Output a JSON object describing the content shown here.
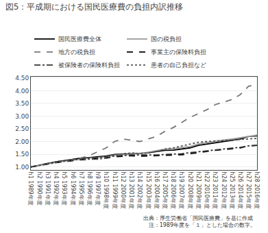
{
  "chart_data": {
    "type": "line",
    "title": "図5：平成期における国民医療費の負担内訳推移",
    "categories": [
      "h1 1989年度",
      "h2 1990年度",
      "h3 1991年度",
      "h4 1992年度",
      "h5 1993年度",
      "h6 1994年度",
      "h7 1995年度",
      "h8 1996年度",
      "h9 1997年度",
      "h10 1998年度",
      "h11 1999年度",
      "h12 2000年度",
      "h13 2001年度",
      "h14 2002年度",
      "h15 2003年度",
      "h16 2004年度",
      "h17 2005年度",
      "h18 2006年度",
      "h19 2007年度",
      "h20 2008年度",
      "h21 2009年度",
      "h22 2010年度",
      "h23 2011年度",
      "h24 2012年度",
      "h25 2013年度",
      "h26 2014年度",
      "h27 2015年度",
      "h28 2016年度"
    ],
    "ylim": [
      0.88,
      4.55
    ],
    "yticks": [
      {
        "value": 1.0,
        "label": "1.00"
      },
      {
        "value": 1.5,
        "label": "1.50"
      },
      {
        "value": 2.0,
        "label": "2.00"
      },
      {
        "value": 2.5,
        "label": "2.50"
      },
      {
        "value": 3.0,
        "label": "3.00"
      },
      {
        "value": 3.5,
        "label": "3.50"
      },
      {
        "value": 4.0,
        "label": "4.00"
      },
      {
        "value": 4.5,
        "label": "4.50"
      }
    ],
    "grid": true,
    "legend": "top",
    "annotations": [
      "出典：厚生労働省「国民医療費」を基に作成",
      "   注：1989年度を「１」とした場合の数字。"
    ],
    "series": [
      {
        "name": "国民医療費全体",
        "color": "#000000",
        "line_style": "solid",
        "values": [
          1.0,
          1.07,
          1.14,
          1.2,
          1.25,
          1.3,
          1.35,
          1.37,
          1.4,
          1.43,
          1.49,
          1.5,
          1.53,
          1.53,
          1.56,
          1.6,
          1.65,
          1.66,
          1.7,
          1.75,
          1.85,
          1.9,
          1.95,
          2.0,
          2.05,
          2.1,
          2.2,
          2.22
        ]
      },
      {
        "name": "国の税負担",
        "color": "#999999",
        "line_style": "solid",
        "values": [
          1.0,
          1.05,
          1.12,
          1.18,
          1.22,
          1.27,
          1.32,
          1.35,
          1.37,
          1.4,
          1.46,
          1.48,
          1.5,
          1.52,
          1.58,
          1.63,
          1.7,
          1.72,
          1.76,
          1.8,
          1.9,
          1.96,
          2.0,
          2.06,
          2.1,
          2.15,
          2.22,
          2.25
        ]
      },
      {
        "name": "地方の税負担",
        "color": "#777777",
        "line_style": "dashed",
        "values": [
          1.0,
          1.06,
          1.12,
          1.17,
          1.22,
          1.28,
          1.35,
          1.45,
          1.6,
          1.75,
          2.0,
          2.1,
          2.05,
          2.0,
          2.1,
          2.2,
          2.4,
          2.55,
          2.75,
          2.95,
          3.1,
          3.25,
          3.45,
          3.55,
          3.65,
          3.85,
          4.18,
          4.22
        ]
      },
      {
        "name": "事業主の保険料負担",
        "color": "#000000",
        "line_style": "dashed",
        "values": [
          1.0,
          1.06,
          1.12,
          1.17,
          1.21,
          1.25,
          1.28,
          1.3,
          1.32,
          1.35,
          1.4,
          1.42,
          1.44,
          1.42,
          1.43,
          1.43,
          1.45,
          1.45,
          1.48,
          1.52,
          1.57,
          1.6,
          1.65,
          1.68,
          1.72,
          1.75,
          1.83,
          1.85
        ]
      },
      {
        "name": "被保険者の保険料負担",
        "color": "#333333",
        "line_style": "dashdot",
        "values": [
          1.0,
          1.07,
          1.14,
          1.2,
          1.24,
          1.28,
          1.32,
          1.34,
          1.37,
          1.4,
          1.44,
          1.45,
          1.47,
          1.46,
          1.47,
          1.47,
          1.49,
          1.49,
          1.52,
          1.56,
          1.6,
          1.63,
          1.67,
          1.71,
          1.74,
          1.77,
          1.83,
          1.85
        ]
      },
      {
        "name": "患者の自己負担など",
        "color": "#555555",
        "line_style": "dotted",
        "values": [
          1.0,
          1.06,
          1.12,
          1.17,
          1.22,
          1.27,
          1.3,
          1.3,
          1.3,
          1.35,
          1.48,
          1.52,
          1.55,
          1.53,
          1.55,
          1.6,
          1.7,
          1.75,
          1.82,
          1.9,
          1.97,
          2.0,
          2.02,
          2.04,
          2.05,
          2.07,
          2.1,
          2.12
        ]
      }
    ]
  }
}
